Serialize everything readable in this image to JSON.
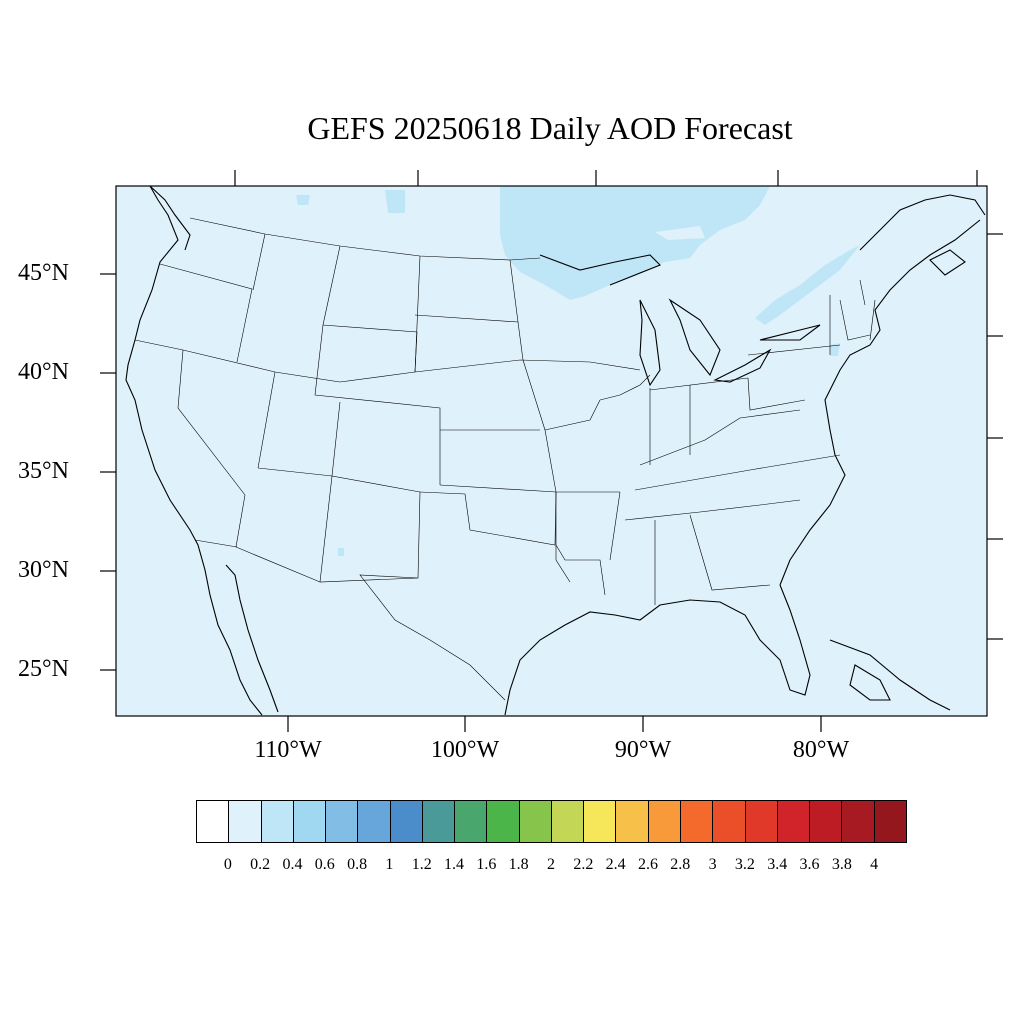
{
  "title": "GEFS 20250618 Daily AOD Forecast",
  "map": {
    "background_fill": "#dff1fa",
    "enhanced_fill": "#bfe6f7",
    "line_color": "#000000",
    "y_ticks": [
      "45°N",
      "40°N",
      "35°N",
      "30°N",
      "25°N"
    ],
    "x_ticks": [
      "110°W",
      "100°W",
      "90°W",
      "80°W"
    ]
  },
  "colorbar": {
    "labels": [
      "0",
      "0.2",
      "0.4",
      "0.6",
      "0.8",
      "1",
      "1.2",
      "1.4",
      "1.6",
      "1.8",
      "2",
      "2.2",
      "2.4",
      "2.6",
      "2.8",
      "3",
      "3.2",
      "3.4",
      "3.6",
      "3.8",
      "4"
    ],
    "colors": [
      "#ffffff",
      "#dff1fa",
      "#bfe6f7",
      "#a0d8f2",
      "#82bde6",
      "#66a6da",
      "#4b8dcb",
      "#4a9a9a",
      "#49a66c",
      "#4bb54a",
      "#86c44b",
      "#c4d656",
      "#f5e65a",
      "#f7c048",
      "#f89a3a",
      "#f46a2c",
      "#ea4f2a",
      "#e0392a",
      "#d0232a",
      "#bd1c25",
      "#a81a21",
      "#93171c"
    ]
  }
}
